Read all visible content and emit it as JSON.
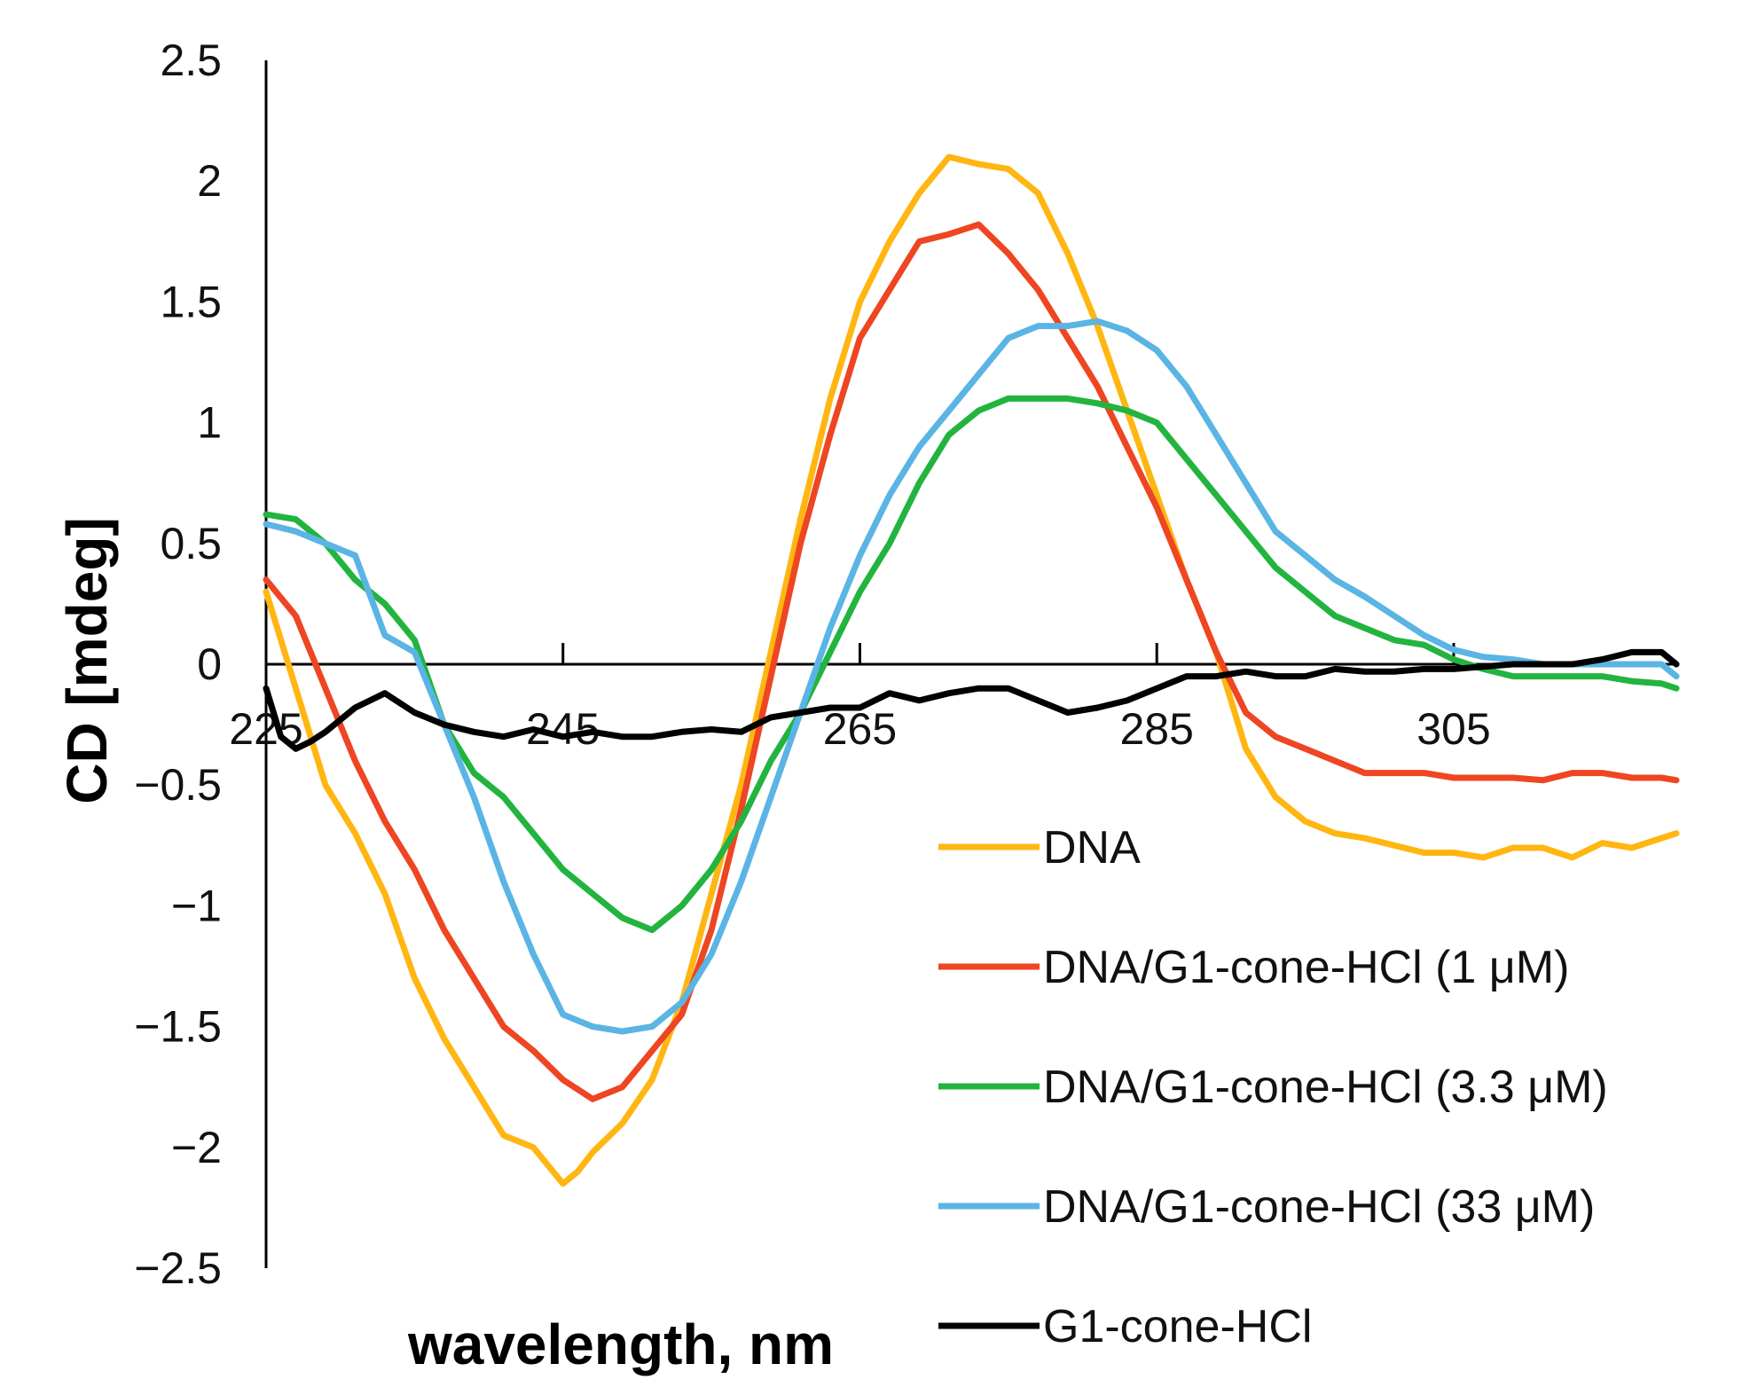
{
  "chart_data": {
    "type": "line",
    "title": "",
    "xlabel": "wavelength, nm",
    "ylabel": "CD [mdeg]",
    "xlim": [
      225,
      320
    ],
    "ylim": [
      -2.5,
      2.5
    ],
    "grid": false,
    "legend_position": "bottom-right",
    "x_ticks": [
      {
        "value": 225,
        "label": "225"
      },
      {
        "value": 245,
        "label": "245"
      },
      {
        "value": 265,
        "label": "265"
      },
      {
        "value": 285,
        "label": "285"
      },
      {
        "value": 305,
        "label": "305"
      }
    ],
    "y_ticks": [
      {
        "value": 2.5,
        "label": "2.5"
      },
      {
        "value": 2,
        "label": "2"
      },
      {
        "value": 1.5,
        "label": "1.5"
      },
      {
        "value": 1,
        "label": "1"
      },
      {
        "value": 0.5,
        "label": "0.5"
      },
      {
        "value": 0,
        "label": "0"
      },
      {
        "value": -0.5,
        "label": "−0.5"
      },
      {
        "value": -1,
        "label": "−1"
      },
      {
        "value": -1.5,
        "label": "−1.5"
      },
      {
        "value": -2,
        "label": "−2"
      },
      {
        "value": -2.5,
        "label": "−2.5"
      }
    ],
    "series": [
      {
        "name": "DNA",
        "color": "#FFB612",
        "x": [
          225,
          227,
          229,
          231,
          233,
          235,
          237,
          239,
          241,
          243,
          245,
          246,
          247,
          249,
          251,
          253,
          255,
          257,
          259,
          261,
          263,
          265,
          267,
          269,
          271,
          273,
          275,
          277,
          279,
          281,
          283,
          285,
          287,
          289,
          291,
          293,
          295,
          297,
          299,
          301,
          303,
          305,
          307,
          309,
          311,
          313,
          315,
          317,
          319,
          320
        ],
        "y": [
          0.3,
          -0.1,
          -0.5,
          -0.7,
          -0.95,
          -1.3,
          -1.55,
          -1.75,
          -1.95,
          -2.0,
          -2.15,
          -2.1,
          -2.02,
          -1.9,
          -1.72,
          -1.4,
          -0.95,
          -0.5,
          0.05,
          0.6,
          1.1,
          1.5,
          1.75,
          1.95,
          2.1,
          2.07,
          2.05,
          1.95,
          1.7,
          1.4,
          1.05,
          0.7,
          0.35,
          0.05,
          -0.35,
          -0.55,
          -0.65,
          -0.7,
          -0.72,
          -0.75,
          -0.78,
          -0.78,
          -0.8,
          -0.76,
          -0.76,
          -0.8,
          -0.74,
          -0.76,
          -0.72,
          -0.7
        ]
      },
      {
        "name": "DNA/G1-cone-HCl (1 μM)",
        "color": "#EE4522",
        "x": [
          225,
          227,
          229,
          231,
          233,
          235,
          237,
          239,
          241,
          243,
          245,
          247,
          249,
          251,
          253,
          255,
          257,
          259,
          261,
          263,
          265,
          267,
          269,
          271,
          273,
          275,
          277,
          279,
          281,
          283,
          285,
          287,
          289,
          291,
          293,
          295,
          297,
          299,
          301,
          303,
          305,
          307,
          309,
          311,
          313,
          315,
          317,
          319,
          320
        ],
        "y": [
          0.35,
          0.2,
          -0.1,
          -0.4,
          -0.65,
          -0.85,
          -1.1,
          -1.3,
          -1.5,
          -1.6,
          -1.72,
          -1.8,
          -1.75,
          -1.6,
          -1.45,
          -1.1,
          -0.6,
          -0.05,
          0.5,
          0.95,
          1.35,
          1.55,
          1.75,
          1.78,
          1.82,
          1.7,
          1.55,
          1.35,
          1.15,
          0.9,
          0.65,
          0.35,
          0.05,
          -0.2,
          -0.3,
          -0.35,
          -0.4,
          -0.45,
          -0.45,
          -0.45,
          -0.47,
          -0.47,
          -0.47,
          -0.48,
          -0.45,
          -0.45,
          -0.47,
          -0.47,
          -0.48
        ]
      },
      {
        "name": "DNA/G1-cone-HCl (3.3 μM)",
        "color": "#22B43F",
        "x": [
          225,
          227,
          229,
          231,
          233,
          235,
          237,
          239,
          241,
          243,
          245,
          247,
          249,
          251,
          253,
          255,
          257,
          259,
          261,
          263,
          265,
          267,
          269,
          271,
          273,
          275,
          277,
          279,
          281,
          283,
          285,
          287,
          289,
          291,
          293,
          295,
          297,
          299,
          301,
          303,
          305,
          307,
          309,
          311,
          313,
          315,
          317,
          319,
          320
        ],
        "y": [
          0.62,
          0.6,
          0.5,
          0.35,
          0.25,
          0.1,
          -0.25,
          -0.45,
          -0.55,
          -0.7,
          -0.85,
          -0.95,
          -1.05,
          -1.1,
          -1.0,
          -0.85,
          -0.65,
          -0.4,
          -0.2,
          0.05,
          0.3,
          0.5,
          0.75,
          0.95,
          1.05,
          1.1,
          1.1,
          1.1,
          1.08,
          1.05,
          1.0,
          0.85,
          0.7,
          0.55,
          0.4,
          0.3,
          0.2,
          0.15,
          0.1,
          0.08,
          0.02,
          -0.02,
          -0.05,
          -0.05,
          -0.05,
          -0.05,
          -0.07,
          -0.08,
          -0.1
        ]
      },
      {
        "name": "DNA/G1-cone-HCl (33 μM)",
        "color": "#5AB4E4",
        "x": [
          225,
          227,
          229,
          231,
          233,
          235,
          237,
          239,
          241,
          243,
          245,
          247,
          249,
          251,
          253,
          255,
          257,
          259,
          261,
          263,
          265,
          267,
          269,
          271,
          273,
          275,
          277,
          279,
          281,
          283,
          285,
          287,
          289,
          291,
          293,
          295,
          297,
          299,
          301,
          303,
          305,
          307,
          309,
          311,
          313,
          315,
          317,
          319,
          320
        ],
        "y": [
          0.58,
          0.55,
          0.5,
          0.45,
          0.12,
          0.05,
          -0.25,
          -0.55,
          -0.9,
          -1.2,
          -1.45,
          -1.5,
          -1.52,
          -1.5,
          -1.4,
          -1.2,
          -0.9,
          -0.55,
          -0.2,
          0.15,
          0.45,
          0.7,
          0.9,
          1.05,
          1.2,
          1.35,
          1.4,
          1.4,
          1.42,
          1.38,
          1.3,
          1.15,
          0.95,
          0.75,
          0.55,
          0.45,
          0.35,
          0.28,
          0.2,
          0.12,
          0.06,
          0.03,
          0.02,
          0.0,
          0.0,
          0.0,
          0.0,
          0.0,
          -0.05
        ]
      },
      {
        "name": "G1-cone-HCl",
        "color": "#000000",
        "x": [
          225,
          226,
          227,
          228,
          229,
          231,
          233,
          235,
          237,
          239,
          241,
          243,
          245,
          247,
          249,
          251,
          253,
          255,
          257,
          259,
          261,
          263,
          265,
          267,
          269,
          271,
          273,
          275,
          277,
          279,
          281,
          283,
          285,
          287,
          289,
          291,
          293,
          295,
          297,
          299,
          301,
          303,
          305,
          307,
          309,
          311,
          313,
          315,
          317,
          319,
          320
        ],
        "y": [
          -0.1,
          -0.3,
          -0.35,
          -0.32,
          -0.28,
          -0.18,
          -0.12,
          -0.2,
          -0.25,
          -0.28,
          -0.3,
          -0.27,
          -0.3,
          -0.28,
          -0.3,
          -0.3,
          -0.28,
          -0.27,
          -0.28,
          -0.22,
          -0.2,
          -0.18,
          -0.18,
          -0.12,
          -0.15,
          -0.12,
          -0.1,
          -0.1,
          -0.15,
          -0.2,
          -0.18,
          -0.15,
          -0.1,
          -0.05,
          -0.05,
          -0.03,
          -0.05,
          -0.05,
          -0.02,
          -0.03,
          -0.03,
          -0.02,
          -0.02,
          -0.01,
          0.0,
          0.0,
          0.0,
          0.02,
          0.05,
          0.05,
          0.0
        ]
      }
    ]
  }
}
